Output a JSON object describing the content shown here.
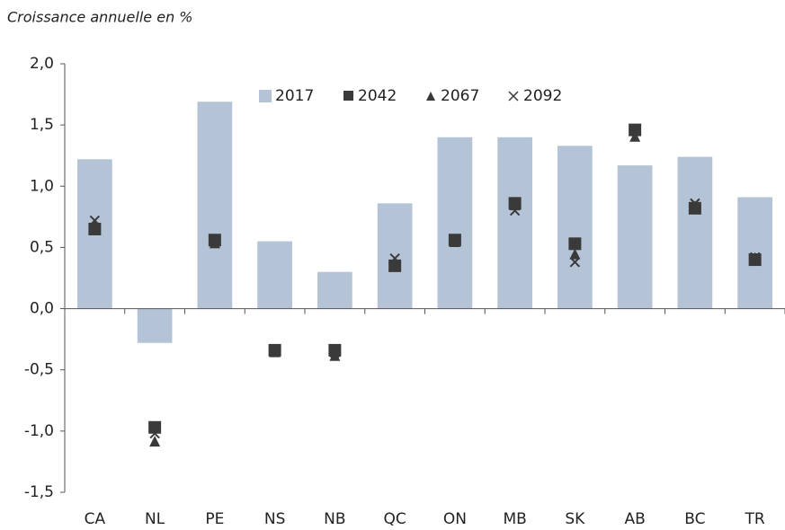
{
  "chart_data": {
    "type": "bar",
    "title": "Croissance annuelle en %",
    "categories": [
      "CA",
      "NL",
      "PE",
      "NS",
      "NB",
      "QC",
      "ON",
      "MB",
      "SK",
      "AB",
      "BC",
      "TR"
    ],
    "series": [
      {
        "name": "2017",
        "color": "#b4c3d6",
        "marker": "bar",
        "values": [
          1.22,
          -0.28,
          1.69,
          0.55,
          0.3,
          0.86,
          1.4,
          1.4,
          1.33,
          1.17,
          1.24,
          0.91
        ]
      },
      {
        "name": "2042",
        "color": "#3a3a3a",
        "marker": "square",
        "values": [
          0.65,
          -0.97,
          0.56,
          -0.34,
          -0.34,
          0.35,
          0.56,
          0.86,
          0.53,
          1.46,
          0.82,
          0.4
        ]
      },
      {
        "name": "2067",
        "color": "#3a3a3a",
        "marker": "triangle",
        "values": [
          0.68,
          -1.09,
          0.53,
          -0.36,
          -0.39,
          0.37,
          0.54,
          0.84,
          0.44,
          1.4,
          0.83,
          0.41
        ]
      },
      {
        "name": "2092",
        "color": "#3a3a3a",
        "marker": "x",
        "values": [
          0.72,
          -1.02,
          0.55,
          -0.35,
          -0.36,
          0.41,
          0.55,
          0.8,
          0.38,
          1.45,
          0.86,
          0.42
        ]
      }
    ],
    "ylim": [
      -1.5,
      2.0
    ],
    "yticks": [
      {
        "value": -1.5,
        "label": "-1,5"
      },
      {
        "value": -1.0,
        "label": "-1,0"
      },
      {
        "value": -0.5,
        "label": "-0,5"
      },
      {
        "value": 0,
        "label": "0,0"
      },
      {
        "value": 0.5,
        "label": "0,5"
      },
      {
        "value": 1.0,
        "label": "1,0"
      },
      {
        "value": 1.5,
        "label": "1,5"
      },
      {
        "value": 2.0,
        "label": "2,0"
      }
    ],
    "legend": "top"
  }
}
